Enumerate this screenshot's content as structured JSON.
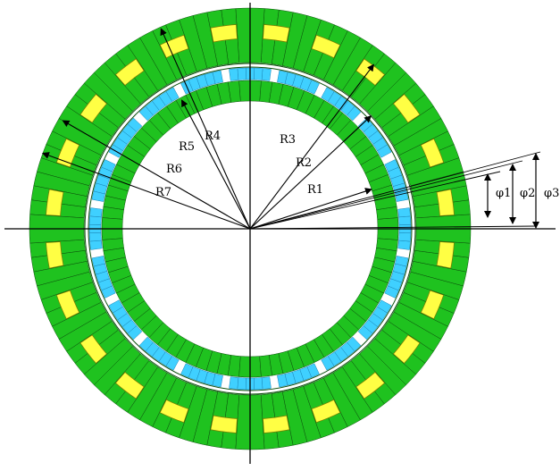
{
  "radius_labels": [
    {
      "id": "r1",
      "text": "R1"
    },
    {
      "id": "r2",
      "text": "R2"
    },
    {
      "id": "r3",
      "text": "R3"
    },
    {
      "id": "r4",
      "text": "R4"
    },
    {
      "id": "r5",
      "text": "R5"
    },
    {
      "id": "r6",
      "text": "R6"
    },
    {
      "id": "r7",
      "text": "R7"
    }
  ],
  "angle_labels": [
    {
      "id": "phi1",
      "text": "φ1"
    },
    {
      "id": "phi2",
      "text": "φ2"
    },
    {
      "id": "phi3",
      "text": "φ3"
    }
  ],
  "colors": {
    "iron": "#1fc21f",
    "iron_edge": "#0b4f0b",
    "magnet": "#3fd0ff",
    "coil": "#ffff44",
    "gap": "#ffffff",
    "line": "#000000"
  },
  "structure": {
    "inner_iron_segments": 84,
    "magnet_poles": 20,
    "slots": 24,
    "outer_iron_segments": 96
  }
}
